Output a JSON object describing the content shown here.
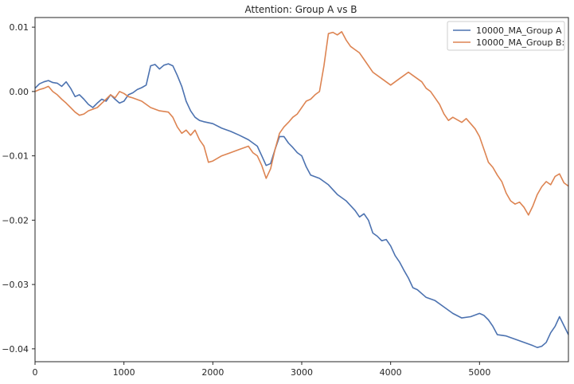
{
  "chart_data": {
    "type": "line",
    "title": "Attention: Group A vs B",
    "xlabel": "",
    "ylabel": "",
    "xlim": [
      0,
      6000
    ],
    "ylim": [
      -0.042,
      0.0115
    ],
    "x_ticks": [
      0,
      1000,
      2000,
      3000,
      4000,
      5000
    ],
    "y_ticks": [
      0.01,
      0.0,
      -0.01,
      -0.02,
      -0.03,
      -0.04
    ],
    "y_tick_labels": [
      "0.01",
      "0.00",
      "−0.01",
      "−0.02",
      "−0.03",
      "−0.04"
    ],
    "grid": false,
    "legend_position": "top-right",
    "series": [
      {
        "name": "10000_MA_Group A",
        "color": "#4c72b0",
        "x": [
          0,
          50,
          100,
          150,
          200,
          250,
          300,
          350,
          400,
          450,
          500,
          550,
          600,
          650,
          700,
          750,
          800,
          850,
          900,
          950,
          1000,
          1050,
          1100,
          1150,
          1200,
          1250,
          1300,
          1350,
          1400,
          1450,
          1500,
          1550,
          1600,
          1650,
          1700,
          1750,
          1800,
          1850,
          1900,
          2000,
          2100,
          2200,
          2300,
          2400,
          2500,
          2550,
          2600,
          2650,
          2700,
          2750,
          2800,
          2850,
          2900,
          2950,
          3000,
          3050,
          3100,
          3200,
          3300,
          3400,
          3500,
          3600,
          3650,
          3700,
          3750,
          3800,
          3850,
          3900,
          3950,
          4000,
          4050,
          4100,
          4150,
          4200,
          4250,
          4300,
          4400,
          4500,
          4600,
          4700,
          4800,
          4900,
          5000,
          5050,
          5100,
          5150,
          5200,
          5300,
          5400,
          5500,
          5600,
          5650,
          5700,
          5750,
          5800,
          5850,
          5900,
          6000
        ],
        "y": [
          0.0005,
          0.0012,
          0.0015,
          0.0017,
          0.0014,
          0.0013,
          0.0008,
          0.0015,
          0.0005,
          -0.0008,
          -0.0005,
          -0.0012,
          -0.002,
          -0.0025,
          -0.0018,
          -0.0012,
          -0.0015,
          -0.0005,
          -0.0012,
          -0.0018,
          -0.0015,
          -0.0005,
          -0.0002,
          0.0003,
          0.0006,
          0.001,
          0.004,
          0.0042,
          0.0035,
          0.0041,
          0.0043,
          0.004,
          0.0025,
          0.0008,
          -0.0015,
          -0.003,
          -0.004,
          -0.0045,
          -0.0047,
          -0.005,
          -0.0057,
          -0.0062,
          -0.0068,
          -0.0075,
          -0.0085,
          -0.01,
          -0.0115,
          -0.0112,
          -0.009,
          -0.007,
          -0.007,
          -0.008,
          -0.0087,
          -0.0095,
          -0.01,
          -0.0117,
          -0.013,
          -0.0135,
          -0.0145,
          -0.016,
          -0.017,
          -0.0185,
          -0.0195,
          -0.019,
          -0.02,
          -0.022,
          -0.0225,
          -0.0232,
          -0.023,
          -0.024,
          -0.0255,
          -0.0265,
          -0.0278,
          -0.029,
          -0.0305,
          -0.0308,
          -0.032,
          -0.0325,
          -0.0335,
          -0.0345,
          -0.0352,
          -0.035,
          -0.0345,
          -0.0348,
          -0.0355,
          -0.0365,
          -0.0378,
          -0.038,
          -0.0385,
          -0.039,
          -0.0395,
          -0.0398,
          -0.0396,
          -0.039,
          -0.0375,
          -0.0365,
          -0.035,
          -0.0378
        ]
      },
      {
        "name": "10000_MA_Group B:",
        "color": "#dd8452",
        "x": [
          0,
          50,
          100,
          150,
          200,
          250,
          300,
          350,
          400,
          450,
          500,
          550,
          600,
          700,
          800,
          850,
          900,
          950,
          1000,
          1050,
          1100,
          1200,
          1300,
          1400,
          1500,
          1550,
          1600,
          1650,
          1700,
          1750,
          1800,
          1850,
          1900,
          1950,
          2000,
          2100,
          2200,
          2300,
          2400,
          2450,
          2500,
          2550,
          2600,
          2650,
          2700,
          2750,
          2800,
          2850,
          2900,
          2950,
          3000,
          3050,
          3100,
          3150,
          3200,
          3250,
          3300,
          3350,
          3400,
          3450,
          3500,
          3550,
          3600,
          3650,
          3700,
          3800,
          3900,
          4000,
          4050,
          4100,
          4150,
          4200,
          4250,
          4300,
          4350,
          4400,
          4450,
          4500,
          4550,
          4600,
          4650,
          4700,
          4800,
          4850,
          4900,
          4950,
          5000,
          5050,
          5100,
          5150,
          5200,
          5250,
          5300,
          5350,
          5400,
          5450,
          5500,
          5550,
          5600,
          5650,
          5700,
          5750,
          5800,
          5850,
          5900,
          5950,
          6000
        ],
        "y": [
          0.0,
          0.0003,
          0.0005,
          0.0008,
          0.0,
          -0.0005,
          -0.0012,
          -0.0018,
          -0.0025,
          -0.0032,
          -0.0037,
          -0.0035,
          -0.003,
          -0.0025,
          -0.0012,
          -0.0005,
          -0.001,
          0.0,
          -0.0003,
          -0.0008,
          -0.001,
          -0.0015,
          -0.0025,
          -0.003,
          -0.0032,
          -0.004,
          -0.0055,
          -0.0065,
          -0.006,
          -0.0068,
          -0.006,
          -0.0075,
          -0.0085,
          -0.011,
          -0.0108,
          -0.01,
          -0.0095,
          -0.009,
          -0.0085,
          -0.0095,
          -0.01,
          -0.0115,
          -0.0135,
          -0.012,
          -0.009,
          -0.0065,
          -0.0055,
          -0.0048,
          -0.004,
          -0.0035,
          -0.0025,
          -0.0015,
          -0.0012,
          -0.0005,
          0.0,
          0.004,
          0.009,
          0.0092,
          0.0088,
          0.0093,
          0.008,
          0.007,
          0.0065,
          0.006,
          0.005,
          0.003,
          0.002,
          0.001,
          0.0015,
          0.002,
          0.0025,
          0.003,
          0.0025,
          0.002,
          0.0015,
          0.0005,
          0.0,
          -0.001,
          -0.002,
          -0.0035,
          -0.0045,
          -0.004,
          -0.0048,
          -0.0042,
          -0.005,
          -0.0058,
          -0.007,
          -0.009,
          -0.011,
          -0.0118,
          -0.013,
          -0.014,
          -0.0158,
          -0.017,
          -0.0175,
          -0.0172,
          -0.018,
          -0.0192,
          -0.0178,
          -0.016,
          -0.0148,
          -0.014,
          -0.0145,
          -0.0132,
          -0.0128,
          -0.0142,
          -0.0147
        ]
      }
    ]
  }
}
